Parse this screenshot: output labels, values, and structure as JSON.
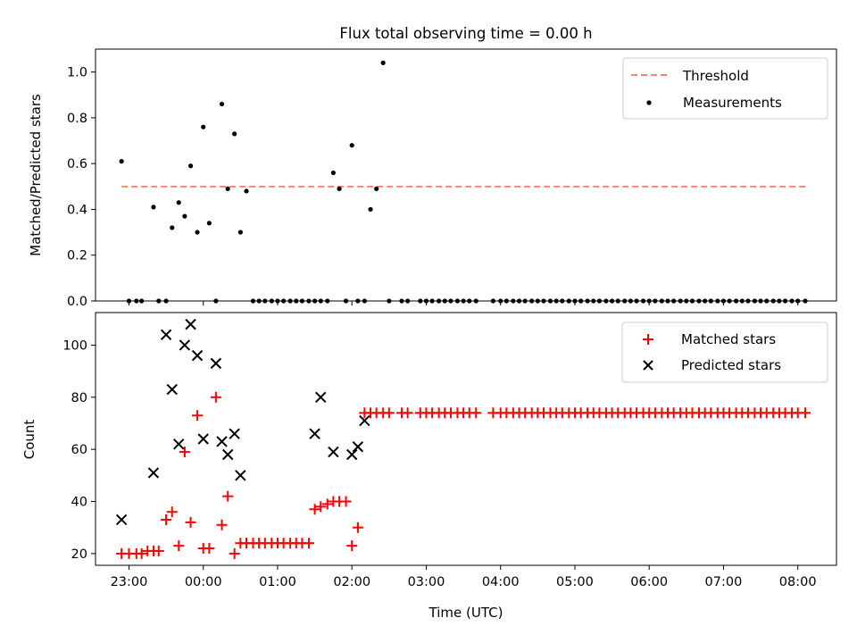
{
  "figure": {
    "title": "Flux total observing time = 0.00 h"
  },
  "x_axis": {
    "label": "Time (UTC)",
    "tick_hours": [
      23,
      24,
      25,
      26,
      27,
      28,
      29,
      30,
      31,
      32
    ],
    "tick_labels": [
      "23:00",
      "00:00",
      "01:00",
      "02:00",
      "03:00",
      "04:00",
      "05:00",
      "06:00",
      "07:00",
      "08:00"
    ],
    "range_hours": [
      22.55,
      32.52
    ]
  },
  "chart_data": [
    {
      "type": "scatter",
      "ylabel": "Matched/Predicted stars",
      "ylim": [
        0.0,
        1.1
      ],
      "yticks": [
        0.0,
        0.2,
        0.4,
        0.6,
        0.8,
        1.0
      ],
      "ytick_labels": [
        "0.0",
        "0.2",
        "0.4",
        "0.6",
        "0.8",
        "1.0"
      ],
      "legend_position": "top-right",
      "threshold": {
        "name": "Threshold",
        "value": 0.5,
        "x_start": 22.9,
        "x_end": 32.1,
        "color": "#ff7f7f",
        "style": "dashed"
      },
      "series": [
        {
          "name": "Measurements",
          "marker": "dot",
          "color": "#000000",
          "x": [
            22.9,
            23.0,
            23.1,
            23.17,
            23.33,
            23.4,
            23.5,
            23.58,
            23.67,
            23.75,
            23.83,
            23.92,
            24.0,
            24.08,
            24.17,
            24.25,
            24.33,
            24.42,
            24.5,
            24.58,
            24.67,
            24.75,
            24.83,
            24.92,
            25.0,
            25.08,
            25.17,
            25.25,
            25.33,
            25.42,
            25.5,
            25.58,
            25.67,
            25.75,
            25.83,
            25.92,
            26.0,
            26.08,
            26.17,
            26.25,
            26.33,
            26.42,
            26.5,
            26.67,
            26.75,
            26.92,
            27.0,
            27.08,
            27.17,
            27.25,
            27.33,
            27.42,
            27.5,
            27.58,
            27.67,
            27.9,
            28.0,
            28.08,
            28.17,
            28.25,
            28.33,
            28.42,
            28.5,
            28.58,
            28.67,
            28.75,
            28.83,
            28.92,
            29.0,
            29.08,
            29.17,
            29.25,
            29.33,
            29.42,
            29.5,
            29.58,
            29.67,
            29.75,
            29.83,
            29.92,
            30.0,
            30.08,
            30.17,
            30.25,
            30.33,
            30.42,
            30.5,
            30.58,
            30.67,
            30.75,
            30.83,
            30.92,
            31.0,
            31.08,
            31.17,
            31.25,
            31.33,
            31.42,
            31.5,
            31.58,
            31.67,
            31.75,
            31.83,
            31.92,
            32.0,
            32.1
          ],
          "y": [
            0.61,
            0.0,
            0.0,
            0.0,
            0.41,
            0.0,
            0.0,
            0.32,
            0.43,
            0.37,
            0.59,
            0.3,
            0.76,
            0.34,
            0.0,
            0.86,
            0.49,
            0.73,
            0.3,
            0.48,
            0.0,
            0.0,
            0.0,
            0.0,
            0.0,
            0.0,
            0.0,
            0.0,
            0.0,
            0.0,
            0.0,
            0.0,
            0.0,
            0.56,
            0.49,
            0.0,
            0.68,
            0.0,
            0.0,
            0.4,
            0.49,
            1.04,
            0.0,
            0.0,
            0.0,
            0.0,
            0.0,
            0.0,
            0.0,
            0.0,
            0.0,
            0.0,
            0.0,
            0.0,
            0.0,
            0.0,
            0.0,
            0.0,
            0.0,
            0.0,
            0.0,
            0.0,
            0.0,
            0.0,
            0.0,
            0.0,
            0.0,
            0.0,
            0.0,
            0.0,
            0.0,
            0.0,
            0.0,
            0.0,
            0.0,
            0.0,
            0.0,
            0.0,
            0.0,
            0.0,
            0.0,
            0.0,
            0.0,
            0.0,
            0.0,
            0.0,
            0.0,
            0.0,
            0.0,
            0.0,
            0.0,
            0.0,
            0.0,
            0.0,
            0.0,
            0.0,
            0.0,
            0.0,
            0.0,
            0.0,
            0.0,
            0.0,
            0.0,
            0.0,
            0.0,
            0.0
          ]
        }
      ]
    },
    {
      "type": "scatter",
      "ylabel": "Count",
      "ylim": [
        15.5,
        112.5
      ],
      "yticks": [
        20,
        40,
        60,
        80,
        100
      ],
      "ytick_labels": [
        "20",
        "40",
        "60",
        "80",
        "100"
      ],
      "legend_position": "top-right",
      "series": [
        {
          "name": "Matched stars",
          "marker": "plus",
          "color": "#ff0000",
          "x": [
            22.9,
            23.0,
            23.1,
            23.17,
            23.25,
            23.33,
            23.4,
            23.5,
            23.58,
            23.67,
            23.75,
            23.83,
            23.92,
            24.0,
            24.08,
            24.17,
            24.25,
            24.33,
            24.42,
            24.5,
            24.58,
            24.67,
            24.75,
            24.83,
            24.92,
            25.0,
            25.08,
            25.17,
            25.25,
            25.33,
            25.42,
            25.5,
            25.58,
            25.67,
            25.75,
            25.83,
            25.92,
            26.0,
            26.08,
            26.17,
            26.25,
            26.33,
            26.42,
            26.5,
            26.67,
            26.75,
            26.92,
            27.0,
            27.08,
            27.17,
            27.25,
            27.33,
            27.42,
            27.5,
            27.58,
            27.67,
            27.9,
            28.0,
            28.08,
            28.17,
            28.25,
            28.33,
            28.42,
            28.5,
            28.58,
            28.67,
            28.75,
            28.83,
            28.92,
            29.0,
            29.08,
            29.17,
            29.25,
            29.33,
            29.42,
            29.5,
            29.58,
            29.67,
            29.75,
            29.83,
            29.92,
            30.0,
            30.08,
            30.17,
            30.25,
            30.33,
            30.42,
            30.5,
            30.58,
            30.67,
            30.75,
            30.83,
            30.92,
            31.0,
            31.08,
            31.17,
            31.25,
            31.33,
            31.42,
            31.5,
            31.58,
            31.67,
            31.75,
            31.83,
            31.92,
            32.0,
            32.1
          ],
          "y": [
            20,
            20,
            20,
            20,
            21,
            21,
            21,
            33,
            36,
            23,
            59,
            32,
            73,
            22,
            22,
            80,
            31,
            42,
            20,
            24,
            24,
            24,
            24,
            24,
            24,
            24,
            24,
            24,
            24,
            24,
            24,
            37,
            38,
            39,
            40,
            40,
            40,
            23,
            30,
            74,
            74,
            74,
            74,
            74,
            74,
            74,
            74,
            74,
            74,
            74,
            74,
            74,
            74,
            74,
            74,
            74,
            74,
            74,
            74,
            74,
            74,
            74,
            74,
            74,
            74,
            74,
            74,
            74,
            74,
            74,
            74,
            74,
            74,
            74,
            74,
            74,
            74,
            74,
            74,
            74,
            74,
            74,
            74,
            74,
            74,
            74,
            74,
            74,
            74,
            74,
            74,
            74,
            74,
            74,
            74,
            74,
            74,
            74,
            74,
            74,
            74,
            74,
            74,
            74,
            74,
            74,
            74
          ]
        },
        {
          "name": "Predicted stars",
          "marker": "x",
          "color": "#000000",
          "x": [
            22.9,
            23.33,
            23.5,
            23.58,
            23.67,
            23.75,
            23.83,
            23.92,
            24.0,
            24.17,
            24.25,
            24.33,
            24.42,
            24.5,
            25.5,
            25.58,
            25.75,
            26.0,
            26.08,
            26.17
          ],
          "y": [
            33,
            51,
            104,
            83,
            62,
            100,
            108,
            96,
            64,
            93,
            63,
            58,
            66,
            50,
            66,
            80,
            59,
            58,
            61,
            71
          ]
        }
      ]
    }
  ]
}
